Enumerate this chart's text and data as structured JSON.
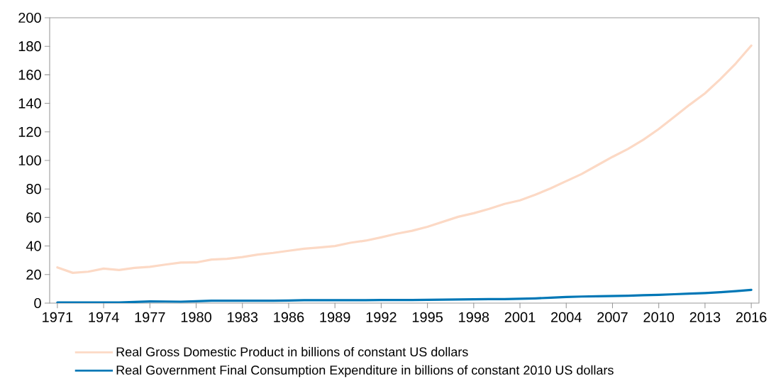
{
  "chart_data": {
    "type": "line",
    "x": [
      1971,
      1972,
      1973,
      1974,
      1975,
      1976,
      1977,
      1978,
      1979,
      1980,
      1981,
      1982,
      1983,
      1984,
      1985,
      1986,
      1987,
      1988,
      1989,
      1990,
      1991,
      1992,
      1993,
      1994,
      1995,
      1996,
      1997,
      1998,
      1999,
      2000,
      2001,
      2002,
      2003,
      2004,
      2005,
      2006,
      2007,
      2008,
      2009,
      2010,
      2011,
      2012,
      2013,
      2014,
      2015,
      2016
    ],
    "series": [
      {
        "name": "Real Gross Domestic Product in billions of constant US dollars",
        "color": "#fcd9c5",
        "values": [
          25,
          21.2,
          22,
          24.2,
          23.2,
          24.7,
          25.4,
          27,
          28.4,
          28.5,
          30.5,
          31,
          32.3,
          34,
          35.2,
          36.7,
          38.1,
          39,
          40,
          42.3,
          43.8,
          46.1,
          48.6,
          50.7,
          53.5,
          57,
          60.5,
          63,
          66,
          69.5,
          72,
          76,
          80.5,
          85.5,
          90.5,
          96.5,
          102.5,
          108,
          114.5,
          122,
          130.5,
          139,
          147,
          157,
          168,
          180.5
        ]
      },
      {
        "name": "Real Government Final Consumption Expenditure in billions of constant 2010 US dollars",
        "color": "#0077b6",
        "values": [
          0.5,
          0.5,
          0.5,
          0.5,
          0.5,
          0.8,
          1.2,
          1.1,
          1,
          1.3,
          1.7,
          1.7,
          1.7,
          1.7,
          1.7,
          1.8,
          2,
          2,
          2,
          2,
          2,
          2.2,
          2.2,
          2.2,
          2.3,
          2.4,
          2.5,
          2.7,
          2.8,
          2.8,
          3,
          3.3,
          3.8,
          4.3,
          4.6,
          4.8,
          5,
          5.2,
          5.5,
          5.8,
          6.2,
          6.6,
          7,
          7.6,
          8.4,
          9.3
        ]
      }
    ],
    "xlim": [
      1970.5,
      2016.5
    ],
    "xticks": [
      1971,
      1974,
      1977,
      1980,
      1983,
      1986,
      1989,
      1992,
      1995,
      1998,
      2001,
      2004,
      2007,
      2010,
      2013,
      2016
    ],
    "ylim": [
      0,
      200
    ],
    "yticks": [
      0,
      20,
      40,
      60,
      80,
      100,
      120,
      140,
      160,
      180,
      200
    ],
    "legend": "bottom",
    "grid": false,
    "marker": "none",
    "line_style": "solid"
  }
}
